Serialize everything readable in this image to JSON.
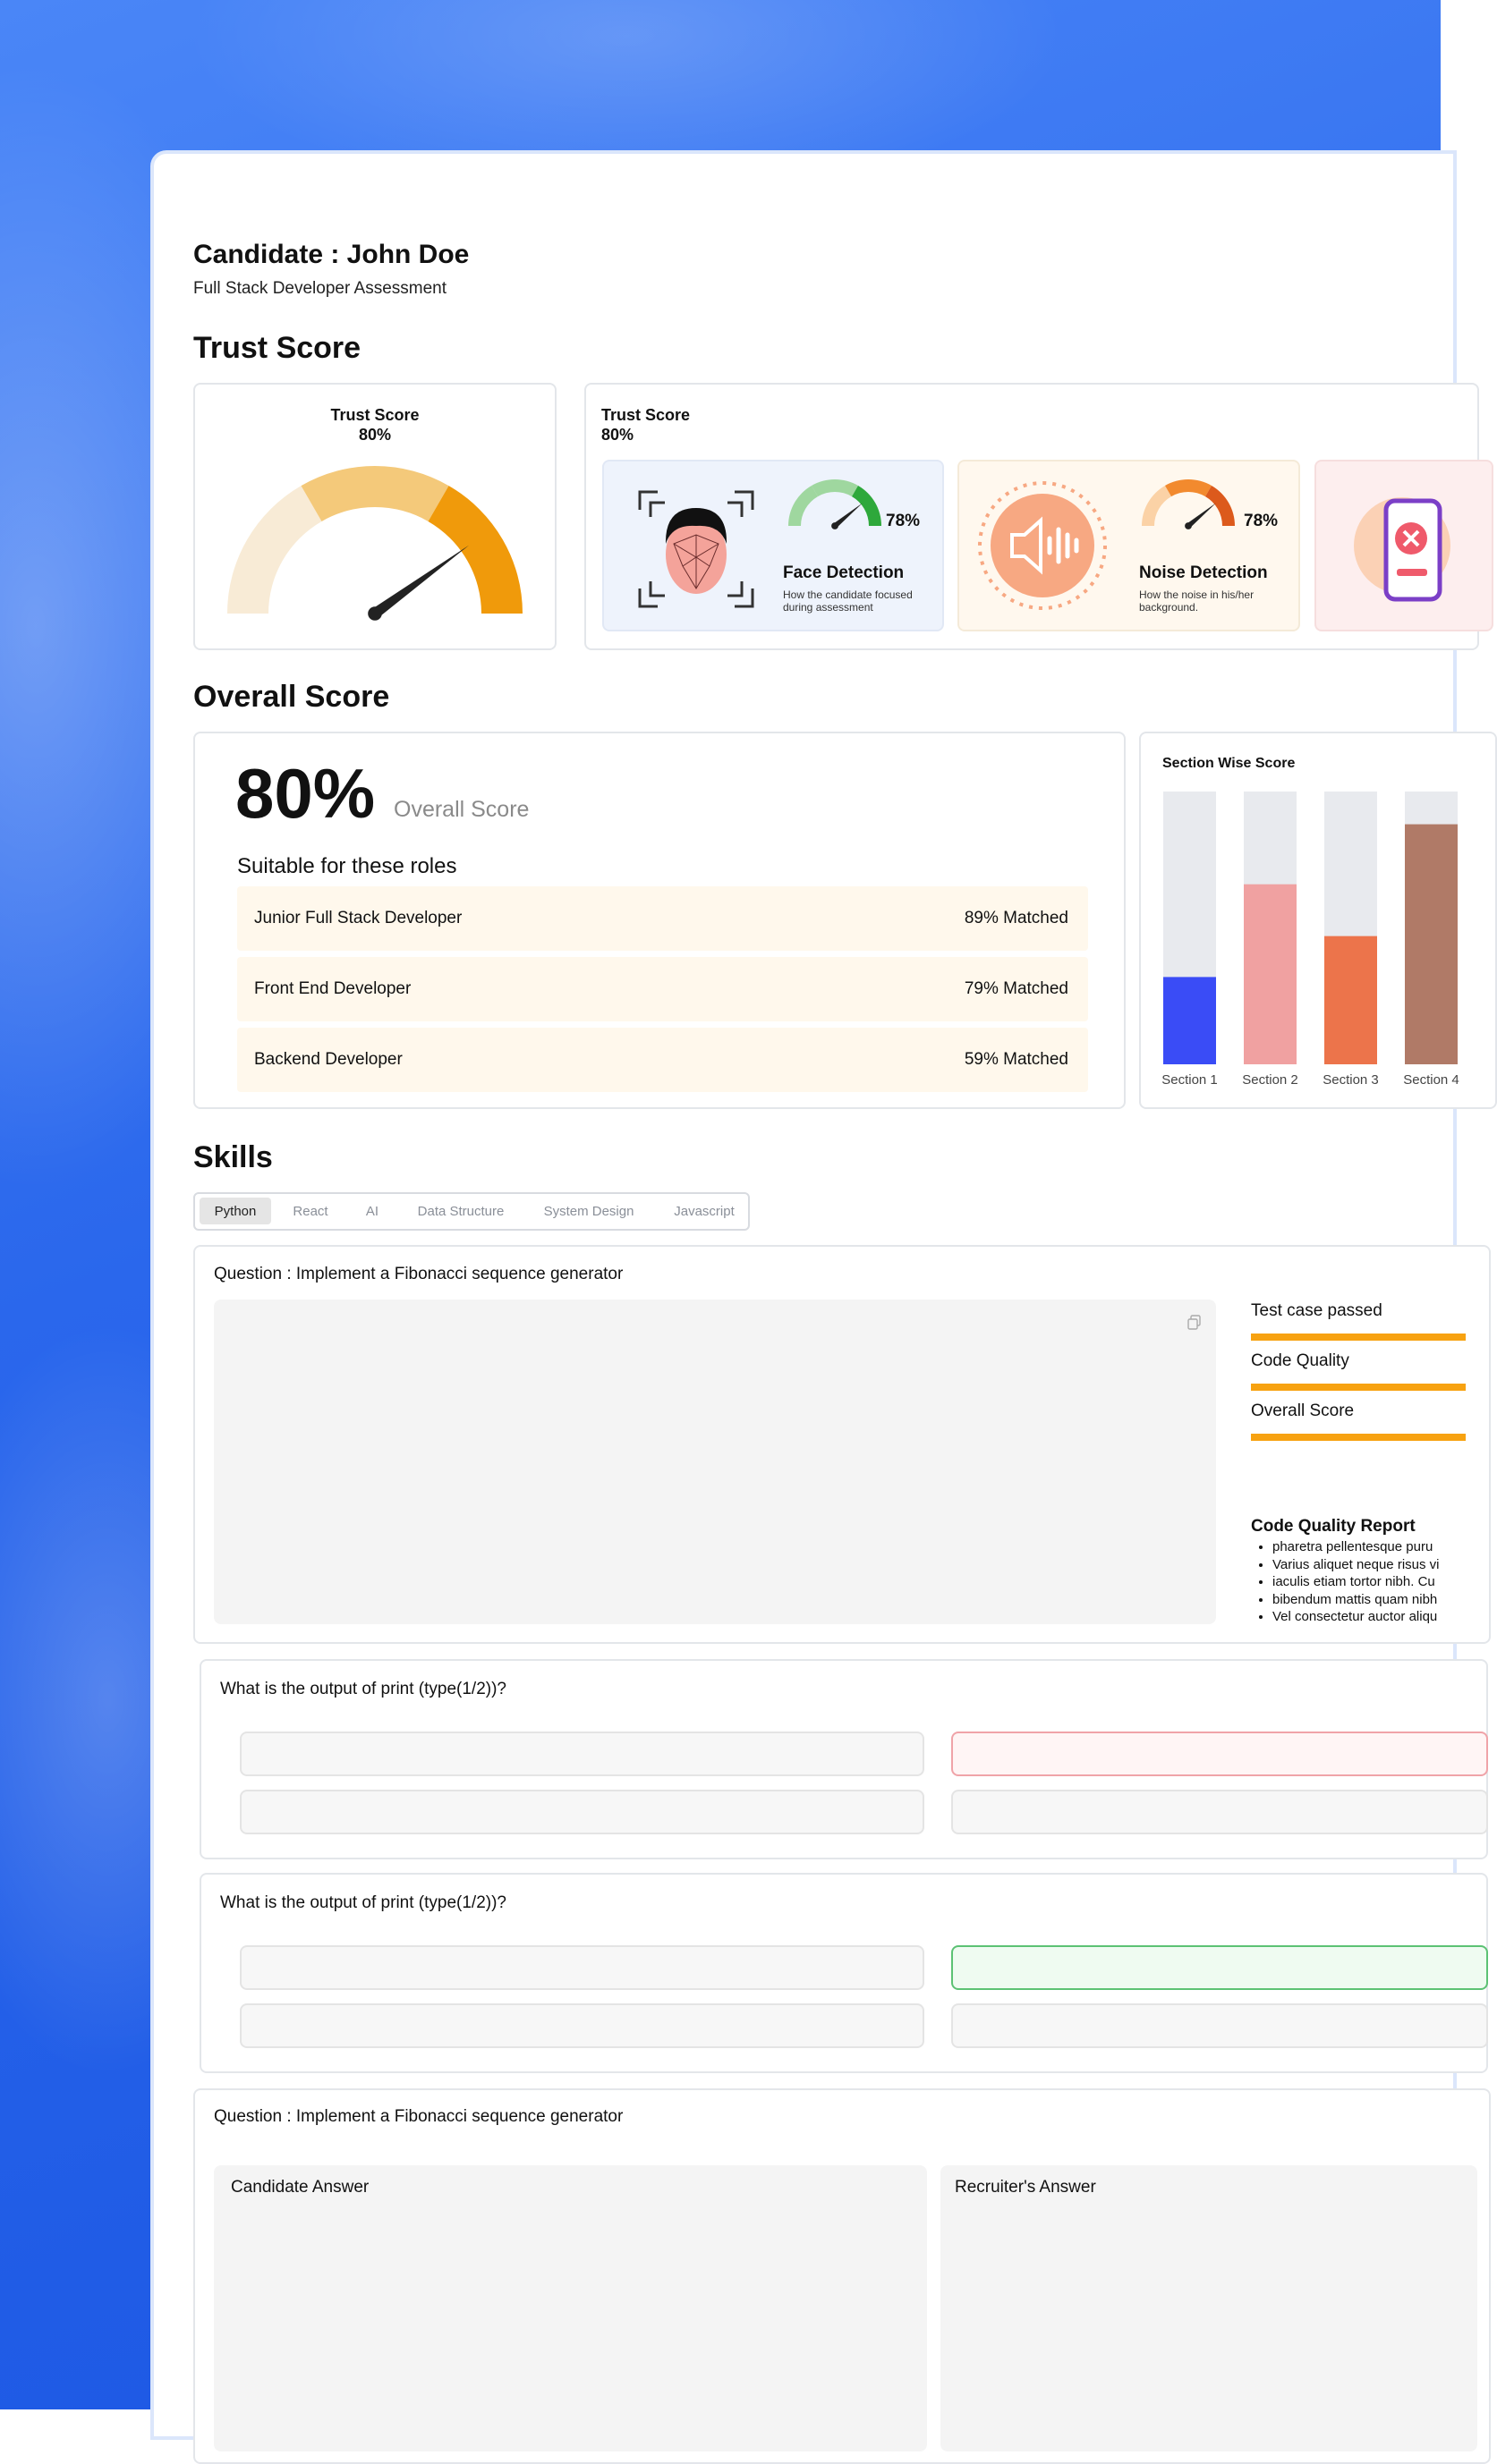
{
  "header": {
    "title": "Candidate : John Doe",
    "subtitle": "Full Stack Developer Assessment"
  },
  "trust_score": {
    "heading": "Trust Score",
    "gauge": {
      "label": "Trust Score",
      "value": 80,
      "value_label": "80%",
      "range": [
        0,
        100
      ],
      "colors": [
        "#f8ebd6",
        "#f4c97a",
        "#f09a0b"
      ]
    },
    "summary": {
      "label": "Trust Score",
      "value_label": "80%"
    },
    "detections": [
      {
        "title": "Face Detection",
        "description": "How the candidate focused during assessment",
        "value": 78,
        "value_label": "78%",
        "range": [
          0,
          100
        ],
        "colors": [
          "#9fd79f",
          "#9fd79f",
          "#2ea83b"
        ]
      },
      {
        "title": "Noise Detection",
        "description": "How the noise in his/her background.",
        "value": 78,
        "value_label": "78%",
        "range": [
          0,
          100
        ],
        "colors": [
          "#fbd2a6",
          "#f28a2e",
          "#dc5a1c"
        ]
      }
    ]
  },
  "overall_score": {
    "heading": "Overall Score",
    "value_label": "80%",
    "label": "Overall Score",
    "roles_heading": "Suitable for these roles",
    "roles": [
      {
        "name": "Junior Full Stack Developer",
        "match": "89% Matched"
      },
      {
        "name": "Front End Developer",
        "match": "79% Matched"
      },
      {
        "name": "Backend Developer",
        "match": "59% Matched"
      }
    ]
  },
  "section_wise_score": {
    "title": "Section Wise Score",
    "sections": [
      "Section 1",
      "Section 2",
      "Section 3",
      "Section 4"
    ],
    "values": [
      32,
      66,
      47,
      88
    ],
    "range": [
      0,
      100
    ],
    "colors": [
      "#3a4cf6",
      "#f0a1a1",
      "#ec744b",
      "#b07a67"
    ]
  },
  "skills": {
    "heading": "Skills",
    "tabs": [
      "Python",
      "React",
      "AI",
      "Data Structure",
      "System Design",
      "Javascript"
    ],
    "active_tab": 0,
    "coding_question": {
      "question": "Question : Implement a Fibonacci sequence generator",
      "metrics": [
        "Test case passed",
        "Code Quality",
        "Overall Score"
      ],
      "report_title": "Code Quality Report",
      "report_items": [
        "pharetra pellentesque puru",
        "Varius aliquet neque risus vi",
        "iaculis etiam tortor nibh. Cu",
        "bibendum mattis quam nibh",
        "Vel consectetur auctor aliqu"
      ]
    },
    "mcqs": [
      {
        "question": "What is the output of print (type(1/2))?",
        "highlight": "#f0a3a8"
      },
      {
        "question": "What is the output of print (type(1/2))?",
        "highlight": "#5cc274"
      }
    ],
    "answer_question": {
      "question": "Question : Implement a Fibonacci sequence generator",
      "candidate_label": "Candidate Answer",
      "recruiter_label": "Recruiter's Answer"
    }
  }
}
